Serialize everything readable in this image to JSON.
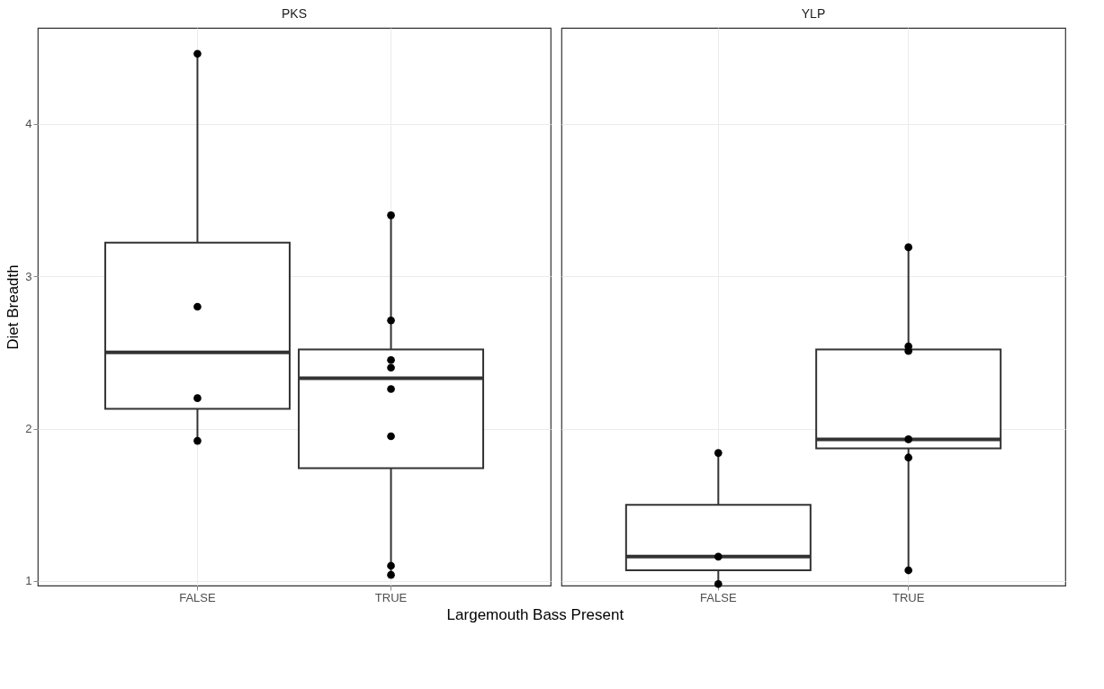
{
  "chart_data": [
    {
      "type": "box",
      "title": "PKS",
      "xlabel": "Largemouth Bass Present",
      "ylabel": "Diet Breadth",
      "categories": [
        "FALSE",
        "TRUE"
      ],
      "boxes": [
        {
          "low": 1.92,
          "q1": 2.13,
          "median": 2.5,
          "q3": 3.22,
          "high": 4.46
        },
        {
          "low": 1.04,
          "q1": 1.74,
          "median": 2.33,
          "q3": 2.52,
          "high": 3.4
        }
      ],
      "series": [
        {
          "type": "scatter",
          "color": "#000000",
          "x": [
            "FALSE",
            "FALSE",
            "FALSE",
            "FALSE",
            "TRUE",
            "TRUE",
            "TRUE",
            "TRUE",
            "TRUE",
            "TRUE",
            "TRUE",
            "TRUE"
          ],
          "values": [
            4.46,
            2.8,
            2.2,
            1.92,
            3.4,
            2.71,
            2.45,
            2.4,
            2.26,
            1.95,
            1.1,
            1.04
          ]
        }
      ],
      "ylim": [
        0.97,
        4.63
      ],
      "yticks": [
        1,
        2,
        3,
        4
      ],
      "grid": true
    },
    {
      "type": "box",
      "title": "YLP",
      "categories": [
        "FALSE",
        "TRUE"
      ],
      "boxes": [
        {
          "low": 0.98,
          "q1": 1.07,
          "median": 1.16,
          "q3": 1.5,
          "high": 1.84
        },
        {
          "low": 1.07,
          "q1": 1.87,
          "median": 1.93,
          "q3": 2.52,
          "high": 3.19
        }
      ],
      "series": [
        {
          "type": "scatter",
          "color": "#000000",
          "x": [
            "FALSE",
            "FALSE",
            "FALSE",
            "TRUE",
            "TRUE",
            "TRUE",
            "TRUE",
            "TRUE",
            "TRUE"
          ],
          "values": [
            1.84,
            1.16,
            0.98,
            3.19,
            2.54,
            2.51,
            1.93,
            1.81,
            1.07
          ]
        }
      ],
      "ylim": [
        0.97,
        4.63
      ],
      "yticks": [
        1,
        2,
        3,
        4
      ],
      "grid": true,
      "tick_labels": "x"
    }
  ]
}
